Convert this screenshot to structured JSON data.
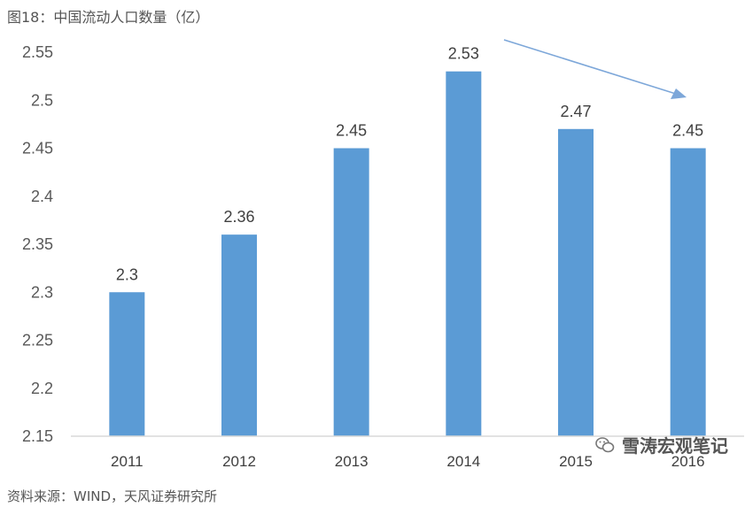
{
  "figure": {
    "title": "图18：中国流动人口数量（亿）",
    "source": "资料来源：WIND，天风证券研究所",
    "watermark": "雪涛宏观笔记"
  },
  "chart_data": {
    "type": "bar",
    "title": "",
    "xlabel": "",
    "ylabel": "",
    "categories": [
      "2011",
      "2012",
      "2013",
      "2014",
      "2015",
      "2016"
    ],
    "values": [
      2.3,
      2.36,
      2.45,
      2.53,
      2.47,
      2.45
    ],
    "data_labels": [
      "2.3",
      "2.36",
      "2.45",
      "2.53",
      "2.47",
      "2.45"
    ],
    "ylim": [
      2.15,
      2.55
    ],
    "yticks": [
      "2.15",
      "2.2",
      "2.25",
      "2.3",
      "2.35",
      "2.4",
      "2.45",
      "2.5",
      "2.55"
    ],
    "grid": false,
    "annotation": "downward arrow from 2014 toward 2016",
    "colors": {
      "bar": "#5B9BD5",
      "arrow": "#7DA7D9",
      "axis": "#D9D9D9"
    }
  }
}
